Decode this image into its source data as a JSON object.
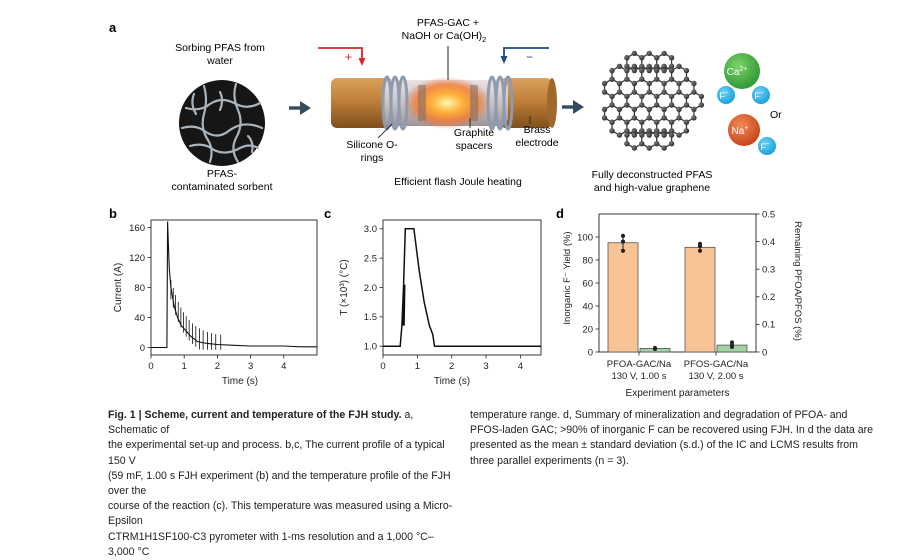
{
  "panel_labels": {
    "a": "a",
    "b": "b",
    "c": "c",
    "d": "d"
  },
  "scheme": {
    "sorbing_line1": "Sorbing PFAS from",
    "sorbing_line2": "water",
    "sorbent_line1": "PFAS-",
    "sorbent_line2": "contaminated sorbent",
    "reagent_line1": "PFAS-GAC +",
    "reagent_line2": "NaOH or Ca(OH)",
    "reagent_sub": "2",
    "plus_sign": "+",
    "minus_sign": "−",
    "silicone_line1": "Silicone O-",
    "silicone_line2": "rings",
    "graphite_line1": "Graphite",
    "graphite_line2": "spacers",
    "brass_line1": "Brass",
    "brass_line2": "electrode",
    "process_label": "Efficient flash Joule heating",
    "result_line1": "Fully deconstructed PFAS",
    "result_line2": "and high-value graphene",
    "ca_label": "Ca",
    "ca_sup": "2+",
    "na_label": "Na",
    "na_sup": "+",
    "f_label": "F",
    "f_sup": "−",
    "or_label": "Or"
  },
  "chart_data": [
    {
      "panel": "b",
      "type": "line",
      "xlabel": "Time (s)",
      "ylabel": "Current (A)",
      "xlim": [
        0,
        5
      ],
      "ylim": [
        -10,
        170
      ],
      "xticks": [
        0,
        1,
        2,
        3,
        4
      ],
      "yticks": [
        0,
        40,
        80,
        120,
        160
      ],
      "series": [
        {
          "x": [
            0,
            0.2,
            0.4,
            0.48,
            0.5,
            0.52,
            0.55,
            0.6,
            0.7,
            0.8,
            0.9,
            1.0,
            1.2,
            1.4,
            1.6,
            1.8,
            2.0,
            2.5,
            3.0,
            3.5,
            4.0,
            4.5,
            5.0
          ],
          "y": [
            0,
            0,
            0,
            0,
            168,
            140,
            105,
            80,
            55,
            40,
            30,
            25,
            15,
            8,
            6,
            5,
            4,
            3,
            2,
            2,
            2,
            1,
            1
          ]
        }
      ]
    },
    {
      "panel": "c",
      "type": "line",
      "xlabel": "Time (s)",
      "ylabel": "T (×10³) (°C)",
      "xlim": [
        0,
        4.6
      ],
      "ylim": [
        0.85,
        3.15
      ],
      "xticks": [
        0,
        1,
        2,
        3,
        4
      ],
      "yticks": [
        1.0,
        1.5,
        2.0,
        2.5,
        3.0
      ],
      "series": [
        {
          "x": [
            0,
            0.45,
            0.5,
            0.55,
            0.6,
            0.65,
            0.9,
            1.05,
            1.2,
            1.35,
            1.45,
            1.5,
            2.5,
            4.6
          ],
          "y": [
            1.0,
            1.0,
            1.0,
            1.35,
            2.05,
            3.0,
            3.0,
            2.3,
            1.75,
            1.35,
            1.2,
            1.0,
            1.0,
            1.0
          ]
        }
      ]
    },
    {
      "panel": "d",
      "type": "bar",
      "xlabel": "Experiment parameters",
      "ylabel": "Inorganic F⁻ Yield (%)",
      "ylabel_right": "Remaining PFOA/PFOS (%)",
      "categories": [
        "PFOA-GAC/Na 130 V, 1.00 s",
        "PFOS-GAC/Na 130 V, 2.00 s"
      ],
      "category_lines": [
        [
          "PFOA-GAC/Na",
          "130 V, 1.00 s"
        ],
        [
          "PFOS-GAC/Na",
          "130 V, 2.00 s"
        ]
      ],
      "ylim": [
        0,
        120
      ],
      "ylim_right": [
        0,
        0.5
      ],
      "yticks": [
        0,
        20,
        40,
        60,
        80,
        100
      ],
      "yticks_right": [
        0,
        0.1,
        0.2,
        0.3,
        0.4,
        0.5
      ],
      "series": [
        {
          "values": [
            95,
            91
          ],
          "points": [
            [
              88,
              96,
              101
            ],
            [
              88,
              92,
              94
            ]
          ]
        },
        {
          "axis": "right",
          "values": [
            0.013,
            0.025
          ],
          "points": [
            [
              0.011,
              0.013,
              0.015
            ],
            [
              0.018,
              0.025,
              0.035
            ]
          ]
        }
      ],
      "colors": [
        "#f8c496",
        "#9fd39f"
      ]
    }
  ],
  "caption": {
    "fig_label": "Fig. 1 | Scheme, current and temperature of the FJH study.",
    "col1_lines": [
      " a, Schematic of",
      "the experimental set-up and process. b,c, The current profile of a typical 150 V",
      "(59 mF, 1.00 s FJH experiment (b) and the temperature profile of the FJH over the",
      "course of the reaction (c). This temperature was measured using a Micro-Epsilon",
      "CTRM1H1SF100-C3 pyrometer with 1-ms resolution and a 1,000 °C–3,000 °C"
    ],
    "col2_lines": [
      "temperature range. d, Summary of mineralization and degradation of PFOA- and",
      "PFOS-laden GAC; >90% of inorganic F can be recovered using FJH. In d the data are",
      "presented as the mean ± standard deviation (s.d.) of the IC and LCMS results from",
      "three parallel experiments (n = 3)."
    ]
  }
}
